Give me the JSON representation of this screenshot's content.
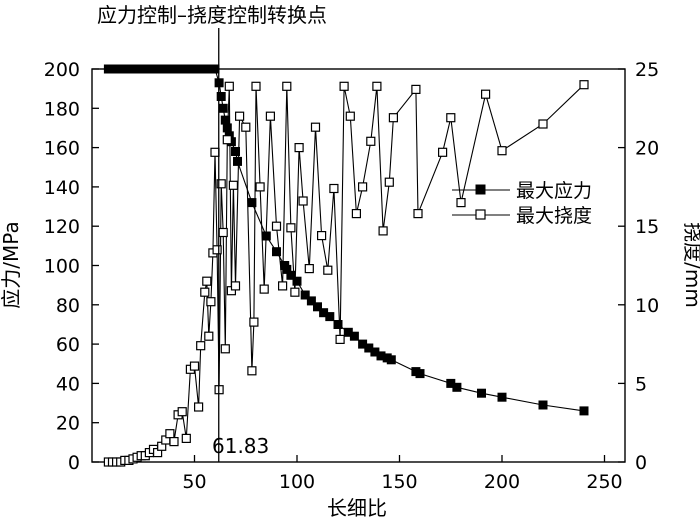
{
  "chart_data": {
    "type": "line",
    "title": "",
    "xlabel": "长细比",
    "ylabel_left": "应力/MPa",
    "ylabel_right": "挠度/mm",
    "xlim": [
      0,
      260
    ],
    "ylim_left": [
      0,
      200
    ],
    "ylim_right": [
      0,
      25
    ],
    "x_ticks": [
      50,
      100,
      150,
      200,
      250
    ],
    "y_left_ticks": [
      0,
      20,
      40,
      60,
      80,
      100,
      120,
      140,
      160,
      180,
      200
    ],
    "y_right_ticks": [
      0,
      5,
      10,
      15,
      20,
      25
    ],
    "grid": false,
    "legend_position": "middle-right",
    "annotations": {
      "top_label": "应力控制–挠度控制转换点",
      "transition_value": "61.83",
      "transition_x": 61.83
    },
    "series": [
      {
        "name": "最大应力",
        "axis": "left",
        "marker": "filled-square",
        "points": [
          [
            8,
            200
          ],
          [
            10,
            200
          ],
          [
            12,
            200
          ],
          [
            14,
            200
          ],
          [
            16,
            200
          ],
          [
            18,
            200
          ],
          [
            20,
            200
          ],
          [
            22,
            200
          ],
          [
            24,
            200
          ],
          [
            26,
            200
          ],
          [
            28,
            200
          ],
          [
            30,
            200
          ],
          [
            32,
            200
          ],
          [
            34,
            200
          ],
          [
            36,
            200
          ],
          [
            38,
            200
          ],
          [
            40,
            200
          ],
          [
            42,
            200
          ],
          [
            44,
            200
          ],
          [
            46,
            200
          ],
          [
            48,
            200
          ],
          [
            50,
            200
          ],
          [
            52,
            200
          ],
          [
            54,
            200
          ],
          [
            56,
            200
          ],
          [
            58,
            200
          ],
          [
            60,
            200
          ],
          [
            62,
            193
          ],
          [
            63,
            186
          ],
          [
            64,
            180
          ],
          [
            65,
            174
          ],
          [
            66,
            170
          ],
          [
            67,
            166
          ],
          [
            68,
            163
          ],
          [
            70,
            158
          ],
          [
            71,
            153
          ],
          [
            78,
            132
          ],
          [
            85,
            115
          ],
          [
            90,
            107
          ],
          [
            94,
            100
          ],
          [
            95,
            98
          ],
          [
            97,
            95
          ],
          [
            100,
            92
          ],
          [
            104,
            85
          ],
          [
            107,
            82
          ],
          [
            110,
            79
          ],
          [
            113,
            76
          ],
          [
            116,
            74
          ],
          [
            120,
            70
          ],
          [
            125,
            66
          ],
          [
            128,
            64
          ],
          [
            132,
            60
          ],
          [
            135,
            58
          ],
          [
            138,
            56
          ],
          [
            141,
            54
          ],
          [
            144,
            53
          ],
          [
            146,
            52
          ],
          [
            158,
            46
          ],
          [
            160,
            45
          ],
          [
            175,
            40
          ],
          [
            178,
            38
          ],
          [
            190,
            35
          ],
          [
            200,
            33
          ],
          [
            220,
            29
          ],
          [
            240,
            26
          ]
        ]
      },
      {
        "name": "最大挠度",
        "axis": "right",
        "marker": "open-square",
        "points": [
          [
            8,
            0
          ],
          [
            10,
            0
          ],
          [
            12,
            0
          ],
          [
            14,
            0
          ],
          [
            16,
            0.1
          ],
          [
            18,
            0.1
          ],
          [
            20,
            0.2
          ],
          [
            22,
            0.3
          ],
          [
            24,
            0.4
          ],
          [
            26,
            0.4
          ],
          [
            28,
            0.6
          ],
          [
            30,
            0.8
          ],
          [
            32,
            0.6
          ],
          [
            34,
            1.0
          ],
          [
            36,
            1.4
          ],
          [
            38,
            1.8
          ],
          [
            40,
            1.3
          ],
          [
            42,
            3.0
          ],
          [
            44,
            3.2
          ],
          [
            46,
            1.5
          ],
          [
            48,
            5.9
          ],
          [
            50,
            6.1
          ],
          [
            52,
            3.5
          ],
          [
            53,
            7.4
          ],
          [
            55,
            10.8
          ],
          [
            56,
            11.5
          ],
          [
            57,
            8.0
          ],
          [
            58,
            10.2
          ],
          [
            59,
            13.3
          ],
          [
            60,
            19.7
          ],
          [
            61,
            13.5
          ],
          [
            62,
            4.6
          ],
          [
            63,
            17.7
          ],
          [
            64,
            14.6
          ],
          [
            65,
            7.2
          ],
          [
            66,
            20.5
          ],
          [
            67,
            23.9
          ],
          [
            68,
            10.9
          ],
          [
            69,
            17.6
          ],
          [
            70,
            11.2
          ],
          [
            72,
            22.0
          ],
          [
            75,
            21.3
          ],
          [
            78,
            5.8
          ],
          [
            79,
            8.9
          ],
          [
            80,
            23.9
          ],
          [
            82,
            17.5
          ],
          [
            84,
            11.0
          ],
          [
            87,
            22.0
          ],
          [
            90,
            15.0
          ],
          [
            93,
            11.2
          ],
          [
            95,
            23.9
          ],
          [
            97,
            14.9
          ],
          [
            99,
            10.8
          ],
          [
            101,
            20.0
          ],
          [
            103,
            16.6
          ],
          [
            106,
            12.3
          ],
          [
            109,
            21.3
          ],
          [
            112,
            14.4
          ],
          [
            115,
            12.2
          ],
          [
            118,
            17.4
          ],
          [
            121,
            7.8
          ],
          [
            123,
            23.9
          ],
          [
            126,
            22.0
          ],
          [
            129,
            15.8
          ],
          [
            132,
            17.5
          ],
          [
            136,
            20.4
          ],
          [
            139,
            23.9
          ],
          [
            142,
            14.7
          ],
          [
            145,
            17.8
          ],
          [
            147,
            21.9
          ],
          [
            158,
            23.7
          ],
          [
            159,
            15.8
          ],
          [
            171,
            19.7
          ],
          [
            175,
            21.9
          ],
          [
            180,
            16.5
          ],
          [
            192,
            23.4
          ],
          [
            200,
            19.8
          ],
          [
            220,
            21.5
          ],
          [
            240,
            24.0
          ]
        ]
      }
    ]
  }
}
